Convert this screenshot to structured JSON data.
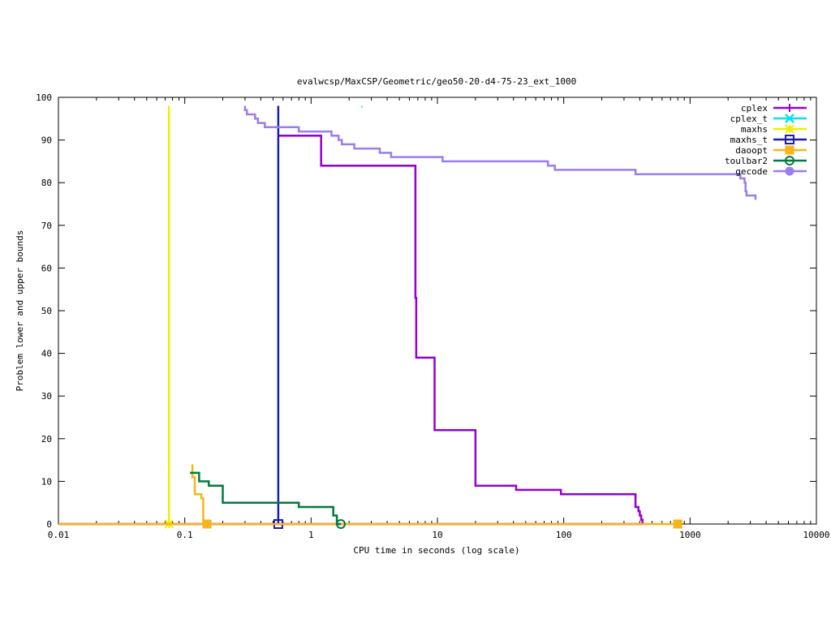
{
  "chart_data": {
    "type": "line",
    "title": "evalwcsp/MaxCSP/Geometric/geo50-20-d4-75-23_ext_1000",
    "xlabel": "CPU time in seconds (log scale)",
    "ylabel": "Problem lower and upper bounds",
    "x_scale": "log",
    "xlim": [
      0.01,
      10000
    ],
    "ylim": [
      0,
      100
    ],
    "x_ticks": [
      {
        "value": 0.01,
        "label": "0.01"
      },
      {
        "value": 0.1,
        "label": "0.1"
      },
      {
        "value": 1,
        "label": "1"
      },
      {
        "value": 10,
        "label": "10"
      },
      {
        "value": 100,
        "label": "100"
      },
      {
        "value": 1000,
        "label": "1000"
      },
      {
        "value": 10000,
        "label": "10000"
      }
    ],
    "y_ticks": [
      0,
      10,
      20,
      30,
      40,
      50,
      60,
      70,
      80,
      90,
      100
    ],
    "legend_position": "top-right",
    "grid": false,
    "series": [
      {
        "name": "cplex",
        "color": "#9400d3",
        "marker": "plus",
        "segments": [
          [
            [
              0.55,
              91
            ],
            [
              1.2,
              91
            ],
            [
              1.2,
              84
            ],
            [
              6.7,
              84
            ],
            [
              6.7,
              53
            ],
            [
              6.8,
              53
            ],
            [
              6.8,
              39
            ],
            [
              9.5,
              39
            ],
            [
              9.5,
              22
            ],
            [
              20,
              22
            ],
            [
              20,
              9
            ],
            [
              42,
              9
            ],
            [
              42,
              8
            ],
            [
              95,
              8
            ],
            [
              95,
              7
            ],
            [
              370,
              7
            ],
            [
              370,
              4
            ],
            [
              390,
              4
            ],
            [
              390,
              3
            ],
            [
              400,
              3
            ],
            [
              400,
              2
            ],
            [
              410,
              2
            ],
            [
              410,
              1
            ],
            [
              420,
              1
            ],
            [
              420,
              0
            ]
          ],
          [
            [
              0.01,
              0
            ],
            [
              420,
              0
            ]
          ]
        ],
        "markers": []
      },
      {
        "name": "cplex_t",
        "color": "#00e5ee",
        "marker": "cross",
        "segments": [
          [
            [
              2.5,
              97.8
            ],
            [
              2.55,
              97.8
            ]
          ]
        ],
        "markers": []
      },
      {
        "name": "maxhs",
        "color": "#eeee00",
        "marker": "star",
        "segments": [
          [
            [
              0.075,
              98
            ],
            [
              0.075,
              0
            ]
          ]
        ],
        "markers": [
          [
            0.075,
            0
          ]
        ]
      },
      {
        "name": "maxhs_t",
        "color": "#1c1cb0",
        "marker": "square",
        "segments": [
          [
            [
              0.55,
              98
            ],
            [
              0.55,
              0
            ]
          ]
        ],
        "markers": [
          [
            0.55,
            0
          ]
        ]
      },
      {
        "name": "daoopt",
        "color": "#f7b518",
        "marker": "filled-square",
        "segments": [
          [
            [
              0.115,
              14
            ],
            [
              0.115,
              11
            ],
            [
              0.12,
              11
            ],
            [
              0.12,
              7
            ],
            [
              0.135,
              7
            ],
            [
              0.135,
              6
            ],
            [
              0.14,
              6
            ],
            [
              0.14,
              0
            ]
          ],
          [
            [
              0.01,
              0
            ],
            [
              800,
              0
            ]
          ]
        ],
        "markers": [
          [
            0.15,
            0
          ],
          [
            800,
            0
          ]
        ]
      },
      {
        "name": "toulbar2",
        "color": "#007a3d",
        "marker": "circle",
        "segments": [
          [
            [
              0.11,
              12
            ],
            [
              0.13,
              12
            ],
            [
              0.13,
              10
            ],
            [
              0.155,
              10
            ],
            [
              0.155,
              9
            ],
            [
              0.2,
              9
            ],
            [
              0.2,
              5
            ],
            [
              0.8,
              5
            ],
            [
              0.8,
              4
            ],
            [
              1.5,
              4
            ],
            [
              1.5,
              2
            ],
            [
              1.6,
              2
            ],
            [
              1.6,
              0
            ],
            [
              1.72,
              0
            ]
          ]
        ],
        "markers": [
          [
            1.72,
            0
          ]
        ]
      },
      {
        "name": "gecode",
        "color": "#9b7ded",
        "marker": "filled-circle",
        "segments": [
          [
            [
              0.3,
              98
            ],
            [
              0.3,
              97
            ],
            [
              0.31,
              97
            ],
            [
              0.31,
              96
            ],
            [
              0.36,
              96
            ],
            [
              0.36,
              95
            ],
            [
              0.38,
              95
            ],
            [
              0.38,
              94
            ],
            [
              0.43,
              94
            ],
            [
              0.43,
              93
            ],
            [
              0.8,
              93
            ],
            [
              0.8,
              92
            ],
            [
              1.45,
              92
            ],
            [
              1.45,
              91
            ],
            [
              1.65,
              91
            ],
            [
              1.65,
              90
            ],
            [
              1.75,
              90
            ],
            [
              1.75,
              89
            ],
            [
              2.2,
              89
            ],
            [
              2.2,
              88
            ],
            [
              3.5,
              88
            ],
            [
              3.5,
              87
            ],
            [
              4.3,
              87
            ],
            [
              4.3,
              86
            ],
            [
              11,
              86
            ],
            [
              11,
              85
            ],
            [
              75,
              85
            ],
            [
              75,
              84
            ],
            [
              85,
              84
            ],
            [
              85,
              83
            ],
            [
              370,
              83
            ],
            [
              370,
              82
            ],
            [
              2500,
              82
            ],
            [
              2500,
              81
            ],
            [
              2700,
              81
            ],
            [
              2700,
              80
            ],
            [
              2750,
              80
            ],
            [
              2750,
              78
            ],
            [
              2800,
              78
            ],
            [
              2800,
              77
            ],
            [
              3300,
              77
            ],
            [
              3300,
              76
            ]
          ]
        ],
        "markers": []
      }
    ]
  }
}
